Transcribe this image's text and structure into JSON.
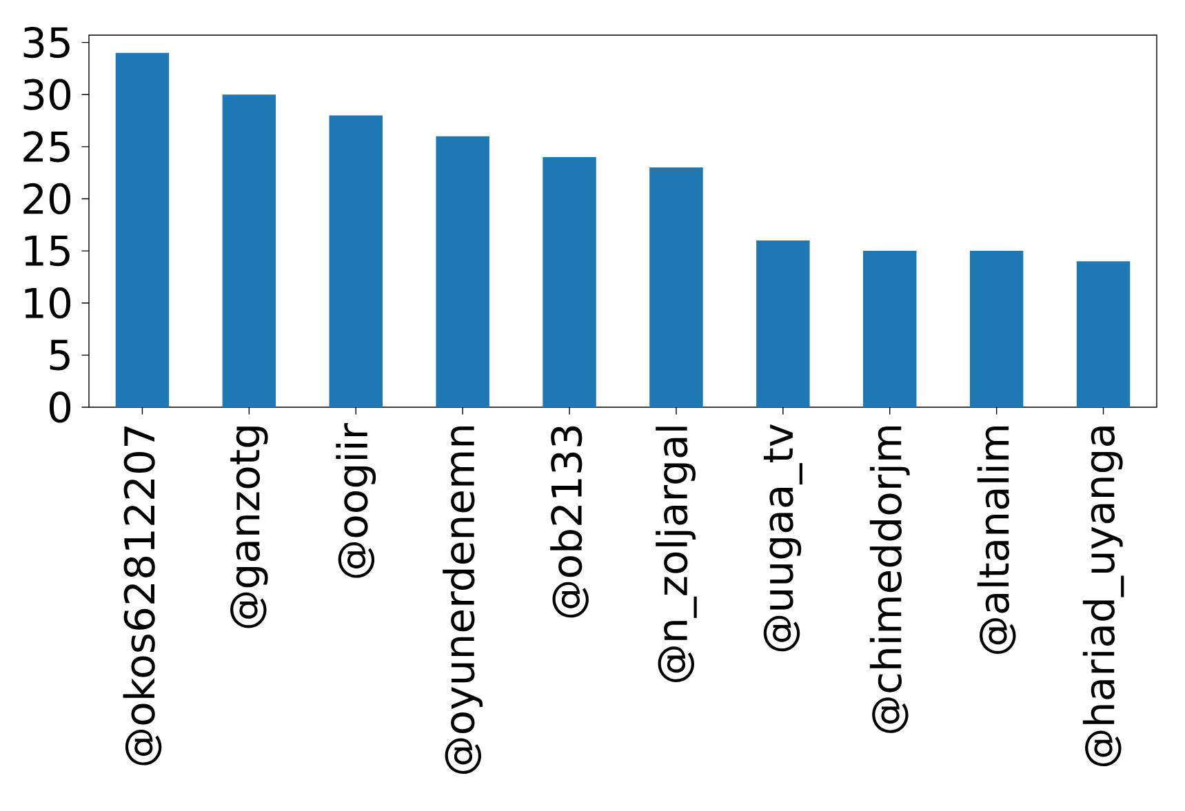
{
  "chart_data": {
    "type": "bar",
    "categories": [
      "@okos62812207",
      "@ganzotg",
      "@oogiir",
      "@oyunerdenemn",
      "@ob2133",
      "@n_zoljargal",
      "@uugaa_tv",
      "@chimeddorjm",
      "@altanalim",
      "@hariad_uyanga"
    ],
    "values": [
      34,
      30,
      28,
      26,
      24,
      23,
      16,
      15,
      15,
      14
    ],
    "color": "#1f77b4",
    "ylim": [
      0,
      35.7
    ],
    "yticks": [
      0,
      5,
      10,
      15,
      20,
      25,
      30,
      35
    ],
    "grid": false
  }
}
